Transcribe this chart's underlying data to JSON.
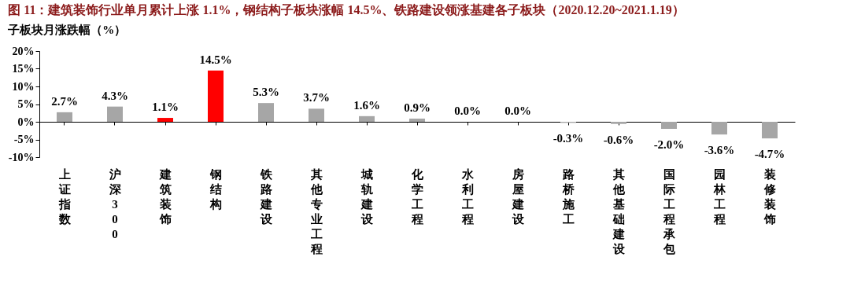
{
  "chart_data": {
    "type": "bar",
    "title": "图 11：建筑装饰行业单月累计上涨 1.1%，钢结构子板块涨幅 14.5%、铁路建设领涨基建各子板块（2020.12.20~2021.1.19）",
    "subtitle": "子板块月涨跌幅（%）",
    "categories": [
      "上证指数",
      "沪深300",
      "建筑装饰",
      "钢结构",
      "铁路建设",
      "其他专业工程",
      "城轨建设",
      "化学工程",
      "水利工程",
      "房屋建设",
      "路桥施工",
      "其他基础建设",
      "国际工程承包",
      "园林工程",
      "装修装饰"
    ],
    "values": [
      2.7,
      4.3,
      1.1,
      14.5,
      5.3,
      3.7,
      1.6,
      0.9,
      0.0,
      0.0,
      -0.3,
      -0.6,
      -2.0,
      -3.6,
      -4.7
    ],
    "value_labels": [
      "2.7%",
      "4.3%",
      "1.1%",
      "14.5%",
      "5.3%",
      "3.7%",
      "1.6%",
      "0.9%",
      "0.0%",
      "0.0%",
      "-0.3%",
      "-0.6%",
      "-2.0%",
      "-3.6%",
      "-4.7%"
    ],
    "colors": [
      "#a6a6a6",
      "#a6a6a6",
      "#ff0000",
      "#ff0000",
      "#a6a6a6",
      "#a6a6a6",
      "#a6a6a6",
      "#a6a6a6",
      "#a6a6a6",
      "#a6a6a6",
      "#a6a6a6",
      "#a6a6a6",
      "#a6a6a6",
      "#a6a6a6",
      "#a6a6a6"
    ],
    "ylim": [
      -10,
      20
    ],
    "yticks": [
      {
        "value": -10,
        "label": "-10%"
      },
      {
        "value": -5,
        "label": "-5%"
      },
      {
        "value": 0,
        "label": "0%"
      },
      {
        "value": 5,
        "label": "5%"
      },
      {
        "value": 10,
        "label": "10%"
      },
      {
        "value": 15,
        "label": "15%"
      },
      {
        "value": 20,
        "label": "20%"
      }
    ]
  }
}
